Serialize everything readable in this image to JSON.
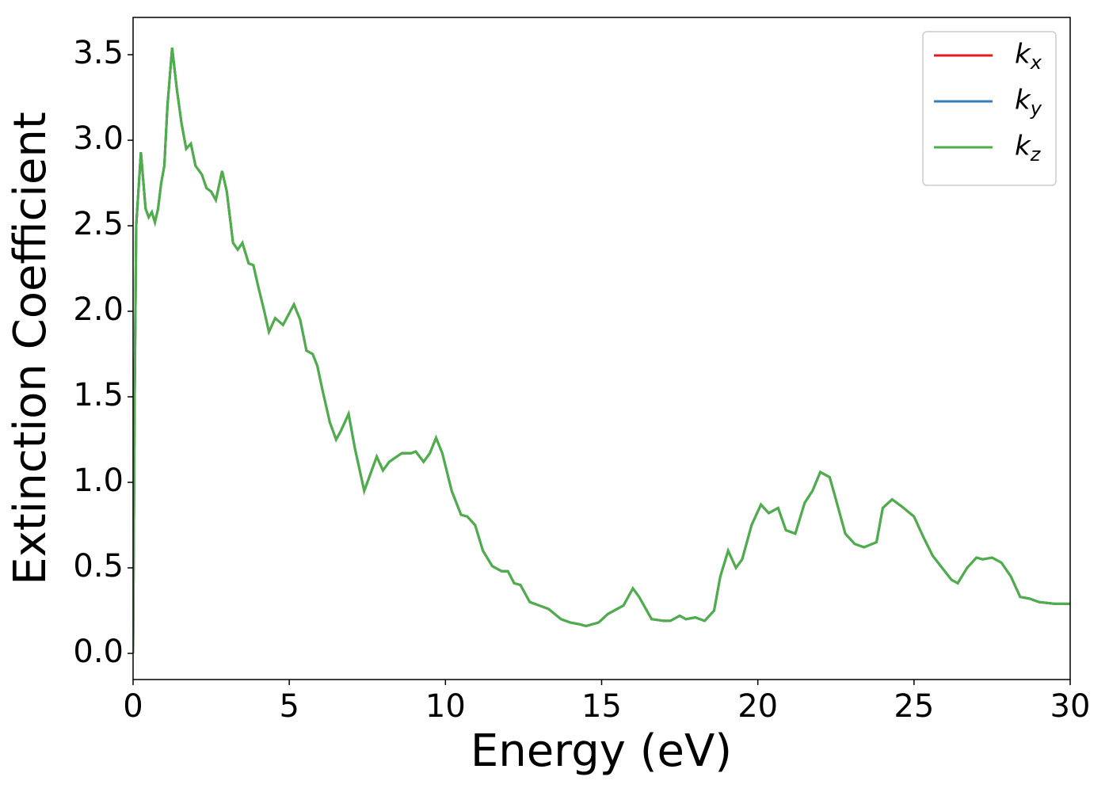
{
  "chart_data": {
    "type": "line",
    "xlabel": "Energy (eV)",
    "ylabel": "Extinction Coefficient",
    "x": [
      0,
      0.05,
      0.1,
      0.25,
      0.4,
      0.5,
      0.6,
      0.7,
      0.8,
      0.9,
      1.0,
      1.1,
      1.25,
      1.4,
      1.55,
      1.7,
      1.85,
      2.0,
      2.2,
      2.35,
      2.5,
      2.65,
      2.85,
      3.0,
      3.2,
      3.35,
      3.5,
      3.7,
      3.85,
      4.0,
      4.2,
      4.35,
      4.55,
      4.8,
      5.15,
      5.35,
      5.55,
      5.75,
      5.9,
      6.05,
      6.3,
      6.5,
      6.65,
      6.9,
      7.1,
      7.4,
      7.6,
      7.8,
      8.0,
      8.2,
      8.6,
      8.9,
      9.05,
      9.3,
      9.5,
      9.7,
      9.9,
      10.2,
      10.5,
      10.7,
      10.95,
      11.2,
      11.5,
      11.8,
      12.0,
      12.2,
      12.4,
      12.7,
      13.0,
      13.3,
      13.7,
      14.0,
      14.3,
      14.5,
      14.9,
      15.2,
      15.7,
      16.0,
      16.2,
      16.6,
      17.0,
      17.2,
      17.5,
      17.7,
      18.0,
      18.3,
      18.6,
      18.8,
      19.05,
      19.3,
      19.5,
      19.8,
      20.1,
      20.35,
      20.65,
      20.9,
      21.2,
      21.5,
      21.75,
      22.0,
      22.3,
      22.5,
      22.8,
      23.1,
      23.4,
      23.8,
      24.0,
      24.3,
      24.6,
      25.0,
      25.3,
      25.6,
      25.9,
      26.2,
      26.4,
      26.7,
      27.0,
      27.2,
      27.5,
      27.8,
      28.1,
      28.4,
      28.7,
      29.0,
      29.5,
      30.0
    ],
    "series": [
      {
        "name": "kx",
        "color": "#e41a1c",
        "values": [
          0.0,
          1.5,
          2.5,
          2.93,
          2.6,
          2.55,
          2.58,
          2.52,
          2.6,
          2.75,
          2.85,
          3.2,
          3.54,
          3.3,
          3.1,
          2.95,
          2.98,
          2.85,
          2.8,
          2.72,
          2.7,
          2.65,
          2.82,
          2.7,
          2.4,
          2.36,
          2.4,
          2.28,
          2.27,
          2.15,
          2.0,
          1.88,
          1.96,
          1.92,
          2.04,
          1.95,
          1.77,
          1.75,
          1.68,
          1.55,
          1.35,
          1.25,
          1.3,
          1.4,
          1.2,
          0.95,
          1.05,
          1.15,
          1.07,
          1.12,
          1.17,
          1.17,
          1.18,
          1.12,
          1.17,
          1.26,
          1.17,
          0.95,
          0.81,
          0.8,
          0.75,
          0.6,
          0.51,
          0.48,
          0.48,
          0.41,
          0.4,
          0.3,
          0.28,
          0.26,
          0.2,
          0.18,
          0.17,
          0.16,
          0.18,
          0.23,
          0.28,
          0.38,
          0.33,
          0.2,
          0.19,
          0.19,
          0.22,
          0.2,
          0.21,
          0.19,
          0.25,
          0.45,
          0.6,
          0.5,
          0.55,
          0.75,
          0.87,
          0.82,
          0.85,
          0.72,
          0.7,
          0.88,
          0.95,
          1.06,
          1.03,
          0.9,
          0.7,
          0.64,
          0.62,
          0.65,
          0.85,
          0.9,
          0.86,
          0.8,
          0.68,
          0.57,
          0.5,
          0.43,
          0.41,
          0.5,
          0.56,
          0.55,
          0.56,
          0.53,
          0.45,
          0.33,
          0.32,
          0.3,
          0.29,
          0.29
        ]
      },
      {
        "name": "ky",
        "color": "#377eb8",
        "values": [
          0.0,
          1.5,
          2.5,
          2.93,
          2.6,
          2.55,
          2.58,
          2.52,
          2.6,
          2.75,
          2.85,
          3.2,
          3.54,
          3.3,
          3.1,
          2.95,
          2.98,
          2.85,
          2.8,
          2.72,
          2.7,
          2.65,
          2.82,
          2.7,
          2.4,
          2.36,
          2.4,
          2.28,
          2.27,
          2.15,
          2.0,
          1.88,
          1.96,
          1.92,
          2.04,
          1.95,
          1.77,
          1.75,
          1.68,
          1.55,
          1.35,
          1.25,
          1.3,
          1.4,
          1.2,
          0.95,
          1.05,
          1.15,
          1.07,
          1.12,
          1.17,
          1.17,
          1.18,
          1.12,
          1.17,
          1.26,
          1.17,
          0.95,
          0.81,
          0.8,
          0.75,
          0.6,
          0.51,
          0.48,
          0.48,
          0.41,
          0.4,
          0.3,
          0.28,
          0.26,
          0.2,
          0.18,
          0.17,
          0.16,
          0.18,
          0.23,
          0.28,
          0.38,
          0.33,
          0.2,
          0.19,
          0.19,
          0.22,
          0.2,
          0.21,
          0.19,
          0.25,
          0.45,
          0.6,
          0.5,
          0.55,
          0.75,
          0.87,
          0.82,
          0.85,
          0.72,
          0.7,
          0.88,
          0.95,
          1.06,
          1.03,
          0.9,
          0.7,
          0.64,
          0.62,
          0.65,
          0.85,
          0.9,
          0.86,
          0.8,
          0.68,
          0.57,
          0.5,
          0.43,
          0.41,
          0.5,
          0.56,
          0.55,
          0.56,
          0.53,
          0.45,
          0.33,
          0.32,
          0.3,
          0.29,
          0.29
        ]
      },
      {
        "name": "kz",
        "color": "#4daf4a",
        "values": [
          0.0,
          1.5,
          2.5,
          2.93,
          2.6,
          2.55,
          2.58,
          2.52,
          2.6,
          2.75,
          2.85,
          3.2,
          3.54,
          3.3,
          3.1,
          2.95,
          2.98,
          2.85,
          2.8,
          2.72,
          2.7,
          2.65,
          2.82,
          2.7,
          2.4,
          2.36,
          2.4,
          2.28,
          2.27,
          2.15,
          2.0,
          1.88,
          1.96,
          1.92,
          2.04,
          1.95,
          1.77,
          1.75,
          1.68,
          1.55,
          1.35,
          1.25,
          1.3,
          1.4,
          1.2,
          0.95,
          1.05,
          1.15,
          1.07,
          1.12,
          1.17,
          1.17,
          1.18,
          1.12,
          1.17,
          1.26,
          1.17,
          0.95,
          0.81,
          0.8,
          0.75,
          0.6,
          0.51,
          0.48,
          0.48,
          0.41,
          0.4,
          0.3,
          0.28,
          0.26,
          0.2,
          0.18,
          0.17,
          0.16,
          0.18,
          0.23,
          0.28,
          0.38,
          0.33,
          0.2,
          0.19,
          0.19,
          0.22,
          0.2,
          0.21,
          0.19,
          0.25,
          0.45,
          0.6,
          0.5,
          0.55,
          0.75,
          0.87,
          0.82,
          0.85,
          0.72,
          0.7,
          0.88,
          0.95,
          1.06,
          1.03,
          0.9,
          0.7,
          0.64,
          0.62,
          0.65,
          0.85,
          0.9,
          0.86,
          0.8,
          0.68,
          0.57,
          0.5,
          0.43,
          0.41,
          0.5,
          0.56,
          0.55,
          0.56,
          0.53,
          0.45,
          0.33,
          0.32,
          0.3,
          0.29,
          0.29
        ]
      }
    ],
    "xlim": [
      0,
      30
    ],
    "xticks": [
      0,
      5,
      10,
      15,
      20,
      25,
      30
    ],
    "ylim": [
      -0.153,
      3.718
    ],
    "yticks": [
      {
        "value": 0,
        "label": "0.0"
      },
      {
        "value": 0.5,
        "label": "0.5"
      },
      {
        "value": 1,
        "label": "1.0"
      },
      {
        "value": 1.5,
        "label": "1.5"
      },
      {
        "value": 2,
        "label": "2.0"
      },
      {
        "value": 2.5,
        "label": "2.5"
      },
      {
        "value": 3,
        "label": "3.0"
      },
      {
        "value": 3.5,
        "label": "3.5"
      }
    ],
    "legend": "upper right",
    "grid": false
  }
}
